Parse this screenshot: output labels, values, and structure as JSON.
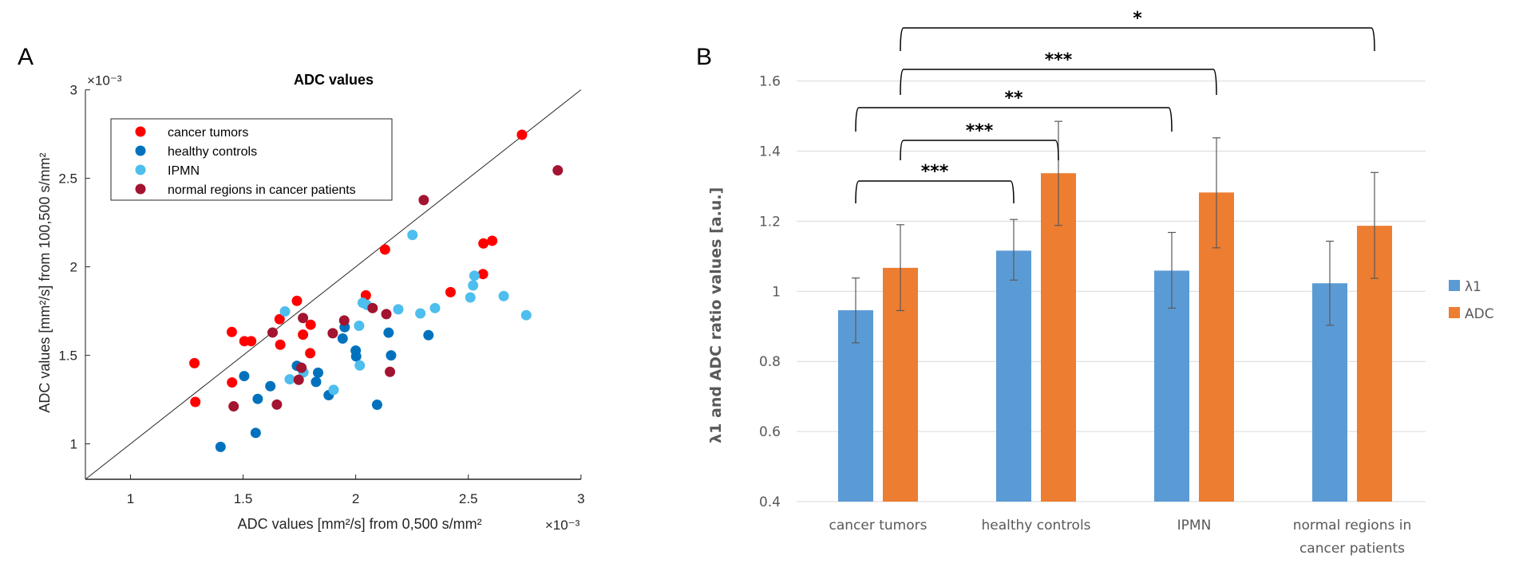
{
  "chart_data": [
    {
      "panel": "A",
      "type": "scatter",
      "title": "ADC values",
      "xlabel": "ADC values [mm²/s] from 0,500 s/mm²",
      "ylabel": "ADC values [mm²/s] from 100,500 s/mm²",
      "x_exponent": "×10⁻³",
      "y_exponent": "×10⁻³",
      "xlim": [
        0.8,
        3.0
      ],
      "ylim": [
        0.8,
        3.0
      ],
      "xticks": [
        "1",
        "1.5",
        "2",
        "2.5",
        "3"
      ],
      "yticks": [
        "1",
        "1.5",
        "2",
        "2.5",
        "3"
      ],
      "xtick_values": [
        1,
        1.5,
        2,
        2.5,
        3
      ],
      "ytick_values": [
        1,
        1.5,
        2,
        2.5,
        3
      ],
      "reference_line": "identity (y = x)",
      "legend_position": "top-left",
      "grid": false,
      "series": [
        {
          "name": "cancer tumors",
          "color": "#ff0000",
          "points": [
            [
              1.284,
              1.456
            ],
            [
              1.288,
              1.237
            ],
            [
              1.45,
              1.632
            ],
            [
              1.506,
              1.58
            ],
            [
              1.536,
              1.58
            ],
            [
              1.451,
              1.347
            ],
            [
              1.662,
              1.704
            ],
            [
              1.739,
              1.808
            ],
            [
              1.8,
              1.673
            ],
            [
              1.766,
              1.617
            ],
            [
              1.665,
              1.56
            ],
            [
              1.798,
              1.512
            ],
            [
              2.045,
              1.839
            ],
            [
              2.13,
              2.098
            ],
            [
              2.421,
              1.857
            ],
            [
              2.565,
              1.959
            ],
            [
              2.567,
              2.132
            ],
            [
              2.606,
              2.147
            ],
            [
              2.738,
              2.746
            ]
          ]
        },
        {
          "name": "healthy controls",
          "color": "#0072bd",
          "points": [
            [
              1.4,
              0.983
            ],
            [
              1.556,
              1.062
            ],
            [
              1.505,
              1.383
            ],
            [
              1.565,
              1.254
            ],
            [
              1.621,
              1.326
            ],
            [
              1.739,
              1.441
            ],
            [
              1.833,
              1.402
            ],
            [
              1.824,
              1.35
            ],
            [
              1.88,
              1.275
            ],
            [
              1.951,
              1.659
            ],
            [
              1.942,
              1.595
            ],
            [
              2.0,
              1.527
            ],
            [
              2.002,
              1.494
            ],
            [
              2.146,
              1.628
            ],
            [
              2.157,
              1.5
            ],
            [
              2.095,
              1.221
            ],
            [
              2.323,
              1.614
            ]
          ]
        },
        {
          "name": "IPMN",
          "color": "#4dbeee",
          "points": [
            [
              1.686,
              1.748
            ],
            [
              1.768,
              1.404
            ],
            [
              1.707,
              1.365
            ],
            [
              1.902,
              1.305
            ],
            [
              2.015,
              1.667
            ],
            [
              2.018,
              1.443
            ],
            [
              2.031,
              1.797
            ],
            [
              2.049,
              1.785
            ],
            [
              2.189,
              1.76
            ],
            [
              2.287,
              1.737
            ],
            [
              2.352,
              1.767
            ],
            [
              2.252,
              2.18
            ],
            [
              2.509,
              1.827
            ],
            [
              2.521,
              1.895
            ],
            [
              2.527,
              1.95
            ],
            [
              2.657,
              1.835
            ],
            [
              2.757,
              1.727
            ]
          ]
        },
        {
          "name": "normal regions in cancer patients",
          "color": "#a2142f",
          "points": [
            [
              1.458,
              1.212
            ],
            [
              1.65,
              1.222
            ],
            [
              1.631,
              1.629
            ],
            [
              1.766,
              1.711
            ],
            [
              1.759,
              1.43
            ],
            [
              1.747,
              1.362
            ],
            [
              1.898,
              1.625
            ],
            [
              1.949,
              1.697
            ],
            [
              2.075,
              1.767
            ],
            [
              2.136,
              1.733
            ],
            [
              2.152,
              1.407
            ],
            [
              2.302,
              2.377
            ],
            [
              2.897,
              2.545
            ]
          ]
        }
      ]
    },
    {
      "panel": "B",
      "type": "bar",
      "title": "",
      "xlabel": "",
      "ylabel": "λ1 and ADC ratio values [a.u.]",
      "ylim": [
        0.4,
        1.6
      ],
      "yticks": [
        "0.4",
        "0.6",
        "0.8",
        "1",
        "1.2",
        "1.4",
        "1.6"
      ],
      "ytick_values": [
        0.4,
        0.6,
        0.8,
        1.0,
        1.2,
        1.4,
        1.6
      ],
      "grid": true,
      "legend_position": "right",
      "categories": [
        [
          "cancer tumors"
        ],
        [
          "healthy controls"
        ],
        [
          "IPMN"
        ],
        [
          "normal regions in",
          "cancer patients"
        ]
      ],
      "series": [
        {
          "name": "λ1",
          "color": "#5b9bd5",
          "values": [
            0.946,
            1.116,
            1.059,
            1.023
          ],
          "error_low": [
            0.853,
            1.032,
            0.952,
            0.903
          ],
          "error_high": [
            1.038,
            1.205,
            1.168,
            1.143
          ]
        },
        {
          "name": "ADC",
          "color": "#ed7d31",
          "values": [
            1.067,
            1.337,
            1.282,
            1.187
          ],
          "error_low": [
            0.945,
            1.188,
            1.124,
            1.037
          ],
          "error_high": [
            1.19,
            1.485,
            1.438,
            1.339
          ]
        }
      ],
      "significance": [
        {
          "label": "***",
          "from": {
            "category": 0,
            "series": 0
          },
          "to": {
            "category": 1,
            "series": 0
          },
          "level": 0
        },
        {
          "label": "***",
          "from": {
            "category": 0,
            "series": 1
          },
          "to": {
            "category": 1,
            "series": 1
          },
          "level": 1
        },
        {
          "label": "**",
          "from": {
            "category": 0,
            "series": 0
          },
          "to": {
            "category": 2,
            "series": 0
          },
          "level": 2
        },
        {
          "label": "***",
          "from": {
            "category": 0,
            "series": 1
          },
          "to": {
            "category": 2,
            "series": 1
          },
          "level": 3
        },
        {
          "label": "*",
          "from": {
            "category": 0,
            "series": 1
          },
          "to": {
            "category": 3,
            "series": 1
          },
          "level": 4
        }
      ]
    }
  ],
  "panels": {
    "a_letter": "A",
    "b_letter": "B"
  }
}
